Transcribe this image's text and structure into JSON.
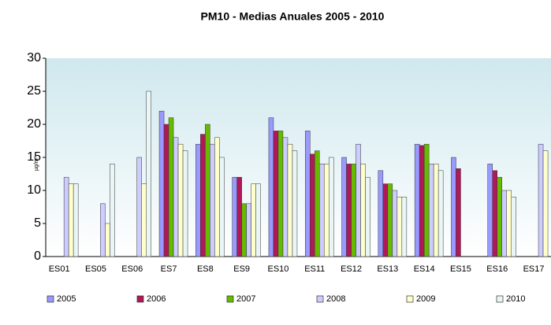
{
  "chart_data": {
    "type": "bar",
    "title": "PM10 - Medias Anuales 2005 - 2010",
    "y_label": "µg/m³",
    "categories": [
      "ES01",
      "ES05",
      "ES06",
      "ES7",
      "ES8",
      "ES9",
      "ES10",
      "ES11",
      "ES12",
      "ES13",
      "ES14",
      "ES15",
      "ES16",
      "ES17"
    ],
    "series": [
      {
        "name": "2005",
        "color": "#9999ff",
        "values": [
          null,
          null,
          null,
          22,
          17,
          12,
          21,
          19,
          15,
          13,
          17,
          15,
          14,
          null
        ]
      },
      {
        "name": "2006",
        "color": "#b0185a",
        "values": [
          null,
          null,
          null,
          20,
          18.5,
          12,
          19,
          15.5,
          14,
          11,
          16.8,
          13.3,
          13,
          null
        ]
      },
      {
        "name": "2007",
        "color": "#66bb00",
        "values": [
          null,
          null,
          null,
          21,
          20,
          8,
          19,
          16,
          14,
          11,
          17,
          null,
          12,
          null
        ]
      },
      {
        "name": "2008",
        "color": "#ccccff",
        "values": [
          12,
          8,
          15,
          18,
          17,
          8,
          18,
          14,
          17,
          10,
          14,
          null,
          10,
          17
        ]
      },
      {
        "name": "2009",
        "color": "#ffffcc",
        "values": [
          11,
          5,
          11,
          17,
          18,
          11,
          17,
          14,
          14,
          9,
          14,
          null,
          10,
          16
        ]
      },
      {
        "name": "2010",
        "color": "#eaf6f6",
        "values": [
          11,
          14,
          25,
          16,
          15,
          11,
          16,
          15,
          12,
          9,
          13,
          null,
          9,
          null
        ]
      }
    ],
    "ylim": [
      0,
      30
    ],
    "yticks": [
      0,
      5,
      10,
      15,
      20,
      25,
      30
    ],
    "legend": "bottom"
  }
}
